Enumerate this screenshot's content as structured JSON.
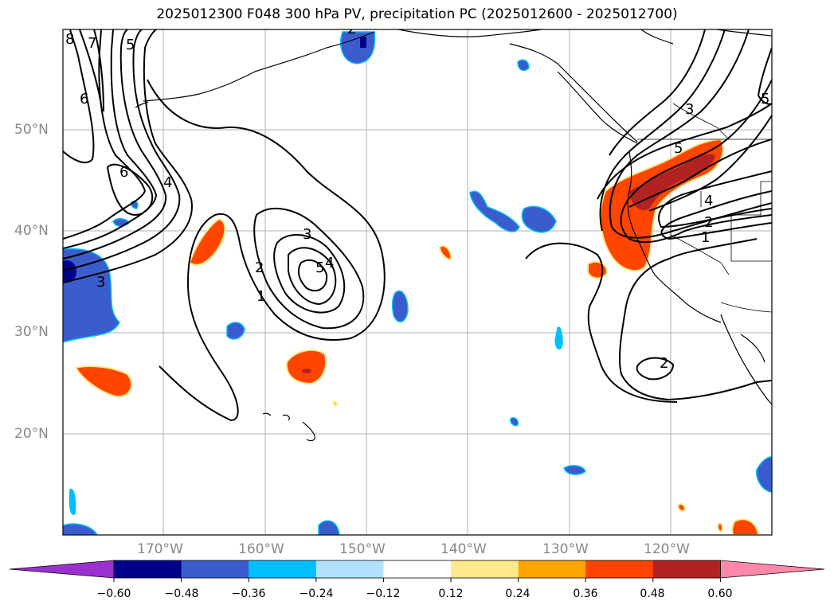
{
  "title": "2025012300 F048 300 hPa PV, precipitation PC (2025012600 - 2025012700)",
  "lat_labels": [
    "50°N",
    "40°N",
    "30°N",
    "20°N"
  ],
  "lon_labels": [
    "170°W",
    "160°W",
    "150°W",
    "140°W",
    "130°W",
    "120°W"
  ],
  "colorbar": {
    "ticks": [
      "−0.60",
      "−0.48",
      "−0.36",
      "−0.24",
      "−0.12",
      "0.12",
      "0.24",
      "0.36",
      "0.48",
      "0.60"
    ],
    "colors": [
      "#9b30d0",
      "#00008b",
      "#3a5ccc",
      "#00bfff",
      "#b0e2ff",
      "#ffffff",
      "#ffe98a",
      "#ffa500",
      "#ff4500",
      "#b22222",
      "#ff88aa"
    ]
  },
  "contour_labels": [
    "8",
    "7",
    "5",
    "6",
    "6",
    "4",
    "3",
    "2",
    "1",
    "3",
    "5",
    "4",
    "3",
    "5",
    "4",
    "2",
    "1",
    "2",
    "5",
    "2"
  ]
}
